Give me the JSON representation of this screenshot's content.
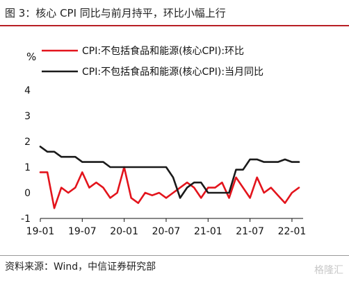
{
  "title": "图 3：核心 CPI 同比与前月持平，环比小幅上行",
  "source": "资料来源：Wind，中信证券研究部",
  "watermark": "格隆汇",
  "chart_data": {
    "type": "line",
    "ylabel": "%",
    "ylim": [
      -1,
      4
    ],
    "yticks": [
      "-1",
      "0",
      "1",
      "2",
      "3",
      "4"
    ],
    "x": [
      "19-01",
      "19-02",
      "19-03",
      "19-04",
      "19-05",
      "19-06",
      "19-07",
      "19-08",
      "19-09",
      "19-10",
      "19-11",
      "19-12",
      "20-01",
      "20-02",
      "20-03",
      "20-04",
      "20-05",
      "20-06",
      "20-07",
      "20-08",
      "20-09",
      "20-10",
      "20-11",
      "20-12",
      "21-01",
      "21-02",
      "21-03",
      "21-04",
      "21-05",
      "21-06",
      "21-07",
      "21-08",
      "21-09",
      "21-10",
      "21-11",
      "21-12",
      "22-01",
      "22-02"
    ],
    "xticks": [
      "19-01",
      "19-07",
      "20-01",
      "20-07",
      "21-01",
      "21-07",
      "22-01"
    ],
    "legend_position": "top-left",
    "series": [
      {
        "name": "CPI:不包括食品和能源(核心CPI):环比",
        "color": "#e3141c",
        "values": [
          0.8,
          0.8,
          -0.6,
          0.2,
          0.0,
          0.2,
          0.8,
          0.2,
          0.4,
          0.2,
          -0.2,
          0.0,
          1.0,
          -0.2,
          -0.4,
          0.0,
          -0.1,
          0.0,
          -0.2,
          0.0,
          0.2,
          0.4,
          0.2,
          -0.2,
          0.2,
          0.2,
          0.4,
          -0.2,
          0.6,
          0.2,
          -0.2,
          0.6,
          0.0,
          0.2,
          -0.1,
          -0.4,
          0.0,
          0.2
        ]
      },
      {
        "name": "CPI:不包括食品和能源(核心CPI):当月同比",
        "color": "#1a1a1a",
        "values": [
          1.8,
          1.6,
          1.6,
          1.4,
          1.4,
          1.4,
          1.2,
          1.2,
          1.2,
          1.2,
          1.0,
          1.0,
          1.0,
          1.0,
          1.0,
          1.0,
          1.0,
          1.0,
          1.0,
          0.6,
          -0.2,
          0.2,
          0.4,
          0.4,
          0.0,
          0.0,
          0.0,
          0.0,
          0.9,
          0.9,
          1.3,
          1.3,
          1.2,
          1.2,
          1.2,
          1.3,
          1.2,
          1.2
        ]
      }
    ]
  }
}
